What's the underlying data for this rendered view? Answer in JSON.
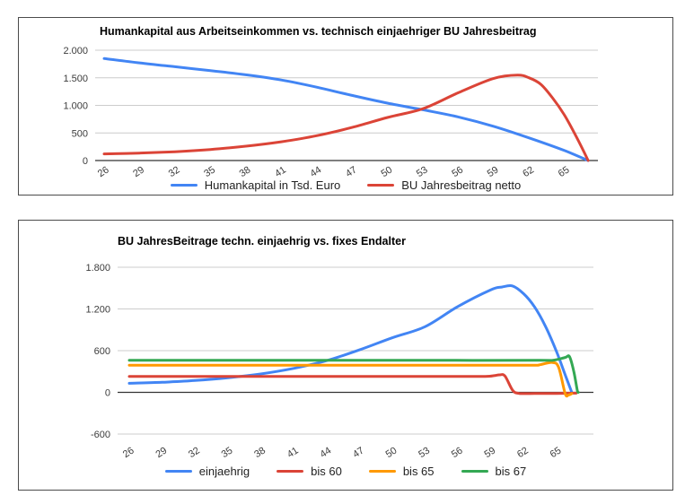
{
  "page": {
    "background": "#ffffff",
    "panel_border": "#4b4b4b"
  },
  "colors": {
    "blue": "#4285F4",
    "red": "#DB4437",
    "orange": "#FF9900",
    "green": "#34A853",
    "grid": "#cccccc",
    "axis": "#333333",
    "tick_text": "#3c3c3c"
  },
  "chart_data": [
    {
      "type": "line",
      "title": "Humankapital aus Arbeitseinkommen vs. technisch einjaehriger BU Jahresbeitrag",
      "xlabel": "",
      "ylabel": "",
      "xlim": [
        25.2,
        68.3
      ],
      "ylim": [
        0,
        2000
      ],
      "grid": true,
      "legend_position": "bottom",
      "x_ticks": [
        "26",
        "29",
        "32",
        "35",
        "38",
        "41",
        "44",
        "47",
        "50",
        "53",
        "56",
        "59",
        "62",
        "65"
      ],
      "x_tick_values": [
        26,
        29,
        32,
        35,
        38,
        41,
        44,
        47,
        50,
        53,
        56,
        59,
        62,
        65
      ],
      "y_ticks": [
        {
          "value": 0,
          "label": "0"
        },
        {
          "value": 500,
          "label": "500"
        },
        {
          "value": 1000,
          "label": "1.000"
        },
        {
          "value": 1500,
          "label": "1.500"
        },
        {
          "value": 2000,
          "label": "2.000"
        }
      ],
      "series": [
        {
          "name": "Humankapital in Tsd. Euro",
          "color": "#4285F4",
          "points": [
            [
              26,
              1850
            ],
            [
              29,
              1770
            ],
            [
              32,
              1700
            ],
            [
              35,
              1630
            ],
            [
              38,
              1555
            ],
            [
              41,
              1460
            ],
            [
              44,
              1330
            ],
            [
              47,
              1180
            ],
            [
              50,
              1040
            ],
            [
              53,
              920
            ],
            [
              56,
              790
            ],
            [
              59,
              620
            ],
            [
              62,
              410
            ],
            [
              65,
              180
            ],
            [
              67,
              0
            ]
          ]
        },
        {
          "name": "BU Jahresbeitrag netto",
          "color": "#DB4437",
          "points": [
            [
              26,
              120
            ],
            [
              29,
              135
            ],
            [
              32,
              160
            ],
            [
              35,
              200
            ],
            [
              38,
              260
            ],
            [
              41,
              340
            ],
            [
              44,
              450
            ],
            [
              47,
              600
            ],
            [
              50,
              780
            ],
            [
              53,
              940
            ],
            [
              56,
              1230
            ],
            [
              59,
              1490
            ],
            [
              61,
              1550
            ],
            [
              62,
              1500
            ],
            [
              63,
              1380
            ],
            [
              64,
              1130
            ],
            [
              65,
              820
            ],
            [
              66,
              430
            ],
            [
              67,
              0
            ]
          ]
        }
      ]
    },
    {
      "type": "line",
      "title": "BU JahresBeitrage techn. einjaehrig vs. fixes Endalter",
      "xlabel": "",
      "ylabel": "",
      "xlim": [
        25.2,
        68.3
      ],
      "ylim": [
        -600,
        1800
      ],
      "grid": true,
      "legend_position": "bottom",
      "x_ticks": [
        "26",
        "29",
        "32",
        "35",
        "38",
        "41",
        "44",
        "47",
        "50",
        "53",
        "56",
        "59",
        "62",
        "65"
      ],
      "x_tick_values": [
        26,
        29,
        32,
        35,
        38,
        41,
        44,
        47,
        50,
        53,
        56,
        59,
        62,
        65
      ],
      "y_ticks": [
        {
          "value": -600,
          "label": "-600"
        },
        {
          "value": 0,
          "label": "0"
        },
        {
          "value": 600,
          "label": "600"
        },
        {
          "value": 1200,
          "label": "1.200"
        },
        {
          "value": 1800,
          "label": "1.800"
        }
      ],
      "series": [
        {
          "name": "einjaehrig",
          "color": "#4285F4",
          "points": [
            [
              26,
              130
            ],
            [
              29,
              145
            ],
            [
              32,
              170
            ],
            [
              35,
              210
            ],
            [
              38,
              265
            ],
            [
              41,
              345
            ],
            [
              44,
              455
            ],
            [
              47,
              610
            ],
            [
              50,
              785
            ],
            [
              53,
              945
            ],
            [
              56,
              1235
            ],
            [
              59,
              1475
            ],
            [
              60,
              1515
            ],
            [
              61,
              1530
            ],
            [
              62,
              1420
            ],
            [
              63,
              1230
            ],
            [
              64,
              950
            ],
            [
              65,
              590
            ],
            [
              65.8,
              250
            ],
            [
              66.4,
              0
            ]
          ]
        },
        {
          "name": "bis 60",
          "color": "#DB4437",
          "points": [
            [
              26,
              230
            ],
            [
              35,
              230
            ],
            [
              45,
              230
            ],
            [
              55,
              230
            ],
            [
              58.5,
              230
            ],
            [
              59.3,
              240
            ],
            [
              59.8,
              252
            ],
            [
              60.3,
              235
            ],
            [
              61,
              30
            ],
            [
              61.6,
              -15
            ],
            [
              63,
              -15
            ],
            [
              65,
              -15
            ],
            [
              66.8,
              -12
            ]
          ]
        },
        {
          "name": "bis 65",
          "color": "#FF9900",
          "points": [
            [
              26,
              390
            ],
            [
              35,
              390
            ],
            [
              45,
              390
            ],
            [
              55,
              390
            ],
            [
              62.5,
              390
            ],
            [
              63.5,
              398
            ],
            [
              64.6,
              430
            ],
            [
              65.2,
              360
            ],
            [
              65.8,
              -20
            ],
            [
              66.1,
              -38
            ],
            [
              66.4,
              -18
            ]
          ]
        },
        {
          "name": "bis 67",
          "color": "#34A853",
          "points": [
            [
              26,
              460
            ],
            [
              35,
              460
            ],
            [
              45,
              460
            ],
            [
              55,
              460
            ],
            [
              63.5,
              460
            ],
            [
              64.8,
              465
            ],
            [
              65.8,
              502
            ],
            [
              66.2,
              512
            ],
            [
              66.6,
              290
            ],
            [
              66.9,
              30
            ],
            [
              67,
              0
            ]
          ]
        }
      ]
    }
  ]
}
